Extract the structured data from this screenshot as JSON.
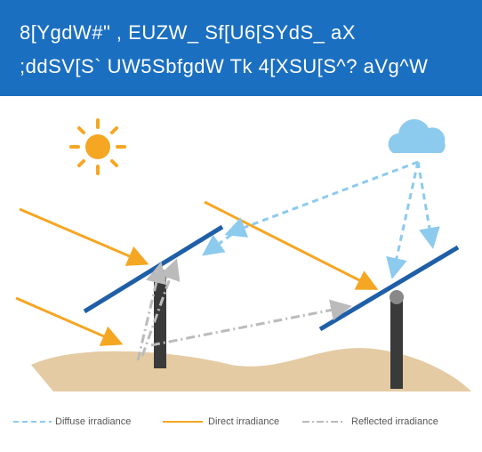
{
  "header": {
    "lines": [
      "8[YgdW#\" , EUZW_ Sf[U6[SYdS_ aX",
      ";ddSV[S` UW5SbfgdW Tk 4[XSU[S^? aVg^W"
    ]
  },
  "legend": {
    "items": [
      "Diffuse irradiance",
      "Direct irradiance",
      "Reflected irradiance"
    ]
  }
}
